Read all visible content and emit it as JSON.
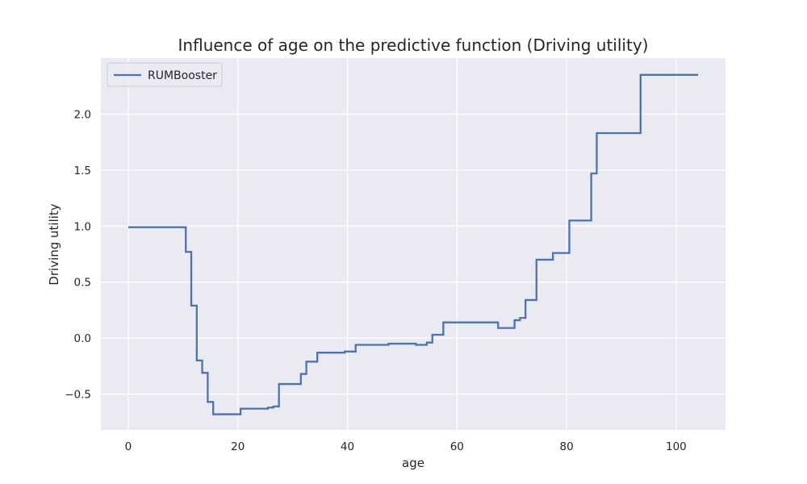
{
  "chart_data": {
    "type": "line",
    "title": "Influence of age on the predictive function (Driving utility)",
    "xlabel": "age",
    "ylabel": "Driving utility",
    "xlim": [
      -5,
      109
    ],
    "ylim": [
      -0.82,
      2.5
    ],
    "xticks": [
      0,
      20,
      40,
      60,
      80,
      100
    ],
    "xtick_labels": [
      "0",
      "20",
      "40",
      "60",
      "80",
      "100"
    ],
    "yticks": [
      -0.5,
      0.0,
      0.5,
      1.0,
      1.5,
      2.0
    ],
    "ytick_labels": [
      "−0.5",
      "0.0",
      "0.5",
      "1.0",
      "1.5",
      "2.0"
    ],
    "grid": true,
    "legend_position": "top-left",
    "series": [
      {
        "name": "RUMBooster",
        "color": "#4c72b0",
        "step": "post",
        "x": [
          0,
          10.5,
          11.5,
          12.5,
          13.5,
          14.5,
          15.5,
          20.5,
          25.5,
          26.5,
          27.5,
          31.5,
          32.5,
          34.5,
          39.5,
          41.5,
          47.5,
          52.5,
          54.5,
          55.5,
          57.5,
          67.5,
          70.5,
          71.5,
          72.5,
          74.5,
          77.5,
          80.5,
          84.5,
          85.5,
          93.5,
          104
        ],
        "y": [
          0.99,
          0.77,
          0.29,
          -0.2,
          -0.31,
          -0.57,
          -0.68,
          -0.63,
          -0.62,
          -0.61,
          -0.41,
          -0.32,
          -0.21,
          -0.13,
          -0.12,
          -0.06,
          -0.05,
          -0.06,
          -0.04,
          0.03,
          0.14,
          0.09,
          0.16,
          0.18,
          0.34,
          0.7,
          0.76,
          1.05,
          1.47,
          1.83,
          2.35,
          2.35
        ]
      }
    ]
  },
  "legend": {
    "label": "RUMBooster"
  }
}
